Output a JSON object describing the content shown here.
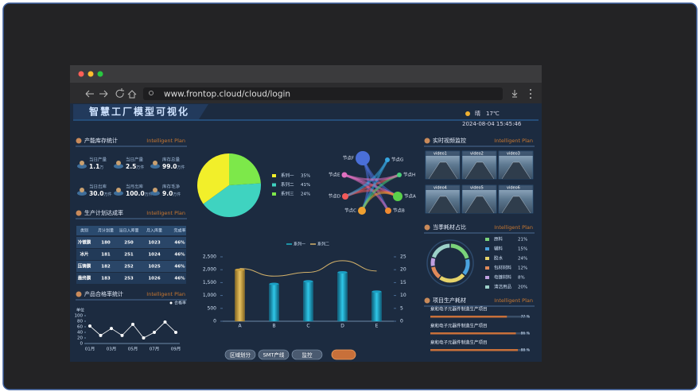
{
  "browser": {
    "url": "www.frontop.cloud/cloud/login"
  },
  "header": {
    "title": "智慧工厂模型可视化",
    "weather": "晴",
    "temperature": "17℃",
    "datetime": "2024-08-04 15:45:46"
  },
  "capacity": {
    "title": "产能库存统计",
    "tag": "Intelligent Plan",
    "items": [
      {
        "label": "当日产量",
        "value": "1.1",
        "unit": "万"
      },
      {
        "label": "当日产量",
        "value": "2.5",
        "unit": "万件"
      },
      {
        "label": "库存总量",
        "value": "99.0",
        "unit": "万件"
      },
      {
        "label": "当日出库",
        "value": "30.0",
        "unit": "万件"
      },
      {
        "label": "当月出库",
        "value": "100.0",
        "unit": "万件"
      },
      {
        "label": "库存毛净",
        "value": "9.0",
        "unit": "万件"
      }
    ]
  },
  "plan": {
    "title": "生产计划达成率",
    "tag": "Intelligent Plan",
    "columns": [
      "类别",
      "月计划量",
      "当日入库量",
      "月入库量",
      "完成率"
    ],
    "rows": [
      [
        "冷镀膜",
        "180",
        "250",
        "1023",
        "46%"
      ],
      [
        "冰片",
        "181",
        "251",
        "1024",
        "46%"
      ],
      [
        "压铸膜",
        "182",
        "252",
        "1025",
        "46%"
      ],
      [
        "最终膜",
        "183",
        "253",
        "1026",
        "46%"
      ]
    ]
  },
  "quality": {
    "type": "line",
    "title": "产品合格率统计",
    "tag": "Intelligent Plan",
    "legend": "合格率",
    "unit": "单位",
    "color": "#ffffff",
    "categories": [
      "01月",
      null,
      "03月",
      null,
      "05月",
      null,
      "07月",
      null,
      "09月"
    ],
    "values": [
      63,
      29,
      54,
      29,
      69,
      20,
      40,
      77,
      40
    ],
    "ylim": [
      0,
      100
    ],
    "yticks": [
      0,
      20,
      40,
      60,
      80,
      100
    ]
  },
  "pie": {
    "type": "pie",
    "categories": [
      "系列一",
      "系列二",
      "系列三"
    ],
    "values": [
      35,
      41,
      24
    ],
    "value_labels": [
      "35%",
      "41%",
      "24%"
    ],
    "colors": [
      "#f2ef2a",
      "#3fd3c0",
      "#7de84a"
    ]
  },
  "network": {
    "nodes": [
      "节点F",
      "节点G",
      "节点E",
      "节点H",
      "节点D",
      "节点A",
      "节点C",
      "节点B"
    ]
  },
  "combo": {
    "type": "bar",
    "categories": [
      "A",
      "B",
      "C",
      "D",
      "E"
    ],
    "series": [
      {
        "name": "系列一",
        "type": "bar",
        "colors": [
          "#c9a040",
          "#1b9fc4",
          "#1b9fc4",
          "#1b9fc4",
          "#1b9fc4"
        ],
        "color": "#1fb5c9",
        "values": [
          2000,
          1450,
          1550,
          1900,
          1150
        ]
      },
      {
        "name": "系列二",
        "type": "line",
        "axis": "y2",
        "color": "#d4b26a",
        "values": [
          20.5,
          17.5,
          19,
          23.5,
          19.5
        ]
      }
    ],
    "ylim": [
      0,
      2500
    ],
    "yticks": [
      0,
      500,
      {
        "value": 1000,
        "label": "1,000"
      },
      {
        "value": 1500,
        "label": "1,500"
      },
      {
        "value": 2000,
        "label": "2,000"
      },
      {
        "value": 2500,
        "label": "2,500"
      }
    ],
    "y2lim": [
      0,
      25
    ],
    "y2ticks": [
      0,
      5,
      10,
      15,
      20,
      25
    ]
  },
  "buttons": [
    "区域划分",
    "SMT产线",
    "监控"
  ],
  "video": {
    "title": "实时视频监控",
    "tag": "Intelligent Plan",
    "feeds": [
      "video1",
      "video2",
      "video3",
      "video4",
      "video5",
      "video6"
    ]
  },
  "consumables": {
    "type": "donut",
    "title": "当季耗材占比",
    "tag": "Intelligent Plan",
    "categories": [
      "原料",
      "辅料",
      "胶水",
      "包材材料",
      "电镀材料",
      "清洁用品"
    ],
    "values": [
      21,
      15,
      24,
      12,
      8,
      20
    ],
    "value_labels": [
      "21%",
      "15%",
      "24%",
      "12%",
      "8%",
      "20%"
    ],
    "colors": [
      "#7ad37a",
      "#4aa3df",
      "#e6d36a",
      "#e08a5a",
      "#c0a0e0",
      "#9bd0c8"
    ]
  },
  "projects": {
    "title": "项目生产耗材",
    "tag": "Intelligent Plan",
    "items": [
      {
        "name": "泉和电子元器件制造生产项目",
        "value": 77,
        "value_label": "77 %"
      },
      {
        "name": "泉和电子元器件制造生产项目",
        "value": 86,
        "value_label": "86 %"
      },
      {
        "name": "泉和电子元器件制造生产项目",
        "value": 88,
        "value_label": "88 %"
      }
    ]
  }
}
